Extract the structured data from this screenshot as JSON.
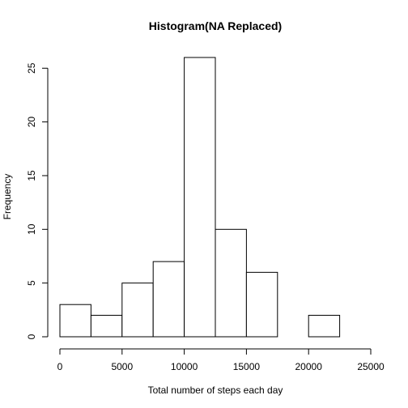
{
  "chart_data": {
    "type": "bar",
    "title": "Histogram(NA Replaced)",
    "xlabel": "Total number of steps each day",
    "ylabel": "Frequency",
    "bin_edges": [
      0,
      2500,
      5000,
      7500,
      10000,
      12500,
      15000,
      17500,
      20000,
      22500,
      25000
    ],
    "values": [
      3,
      2,
      5,
      7,
      26,
      10,
      6,
      0,
      2,
      0
    ],
    "xlim": [
      0,
      25000
    ],
    "ylim": [
      0,
      26
    ],
    "x_ticks": [
      0,
      5000,
      10000,
      15000,
      20000,
      25000
    ],
    "y_ticks": [
      0,
      5,
      10,
      15,
      20,
      25
    ],
    "grid": false,
    "colors": {
      "bar_fill": "#ffffff",
      "bar_stroke": "#000000"
    }
  }
}
